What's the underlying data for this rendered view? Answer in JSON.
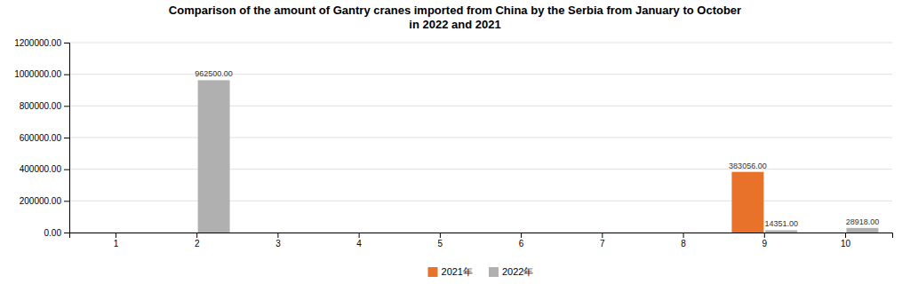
{
  "chart_data": {
    "type": "bar",
    "title": "Comparison of the amount of Gantry cranes imported from China by the Serbia from January to October\nin 2022 and 2021",
    "categories": [
      "1",
      "2",
      "3",
      "4",
      "5",
      "6",
      "7",
      "8",
      "9",
      "10"
    ],
    "series": [
      {
        "name": "2021年",
        "color": "#E8722A",
        "values": [
          0,
          0,
          0,
          0,
          0,
          0,
          0,
          0,
          383056.0,
          0
        ],
        "value_labels": [
          null,
          null,
          null,
          null,
          null,
          null,
          null,
          null,
          "383056.00",
          null
        ]
      },
      {
        "name": "2022年",
        "color": "#B0B0B0",
        "values": [
          0,
          962500.0,
          0,
          0,
          0,
          0,
          0,
          0,
          14351.0,
          28918.0
        ],
        "value_labels": [
          null,
          "962500.00",
          null,
          null,
          null,
          null,
          null,
          null,
          "14351.00",
          "28918.00"
        ]
      }
    ],
    "ylim": [
      0,
      1200000
    ],
    "yticks": [
      {
        "value": 0,
        "label": "0.00"
      },
      {
        "value": 200000,
        "label": "200000.00"
      },
      {
        "value": 400000,
        "label": "400000.00"
      },
      {
        "value": 600000,
        "label": "600000.00"
      },
      {
        "value": 800000,
        "label": "800000.00"
      },
      {
        "value": 1000000,
        "label": "1000000.00"
      },
      {
        "value": 1200000,
        "label": "1200000.00"
      }
    ],
    "grid": true,
    "legend": "bottom"
  }
}
